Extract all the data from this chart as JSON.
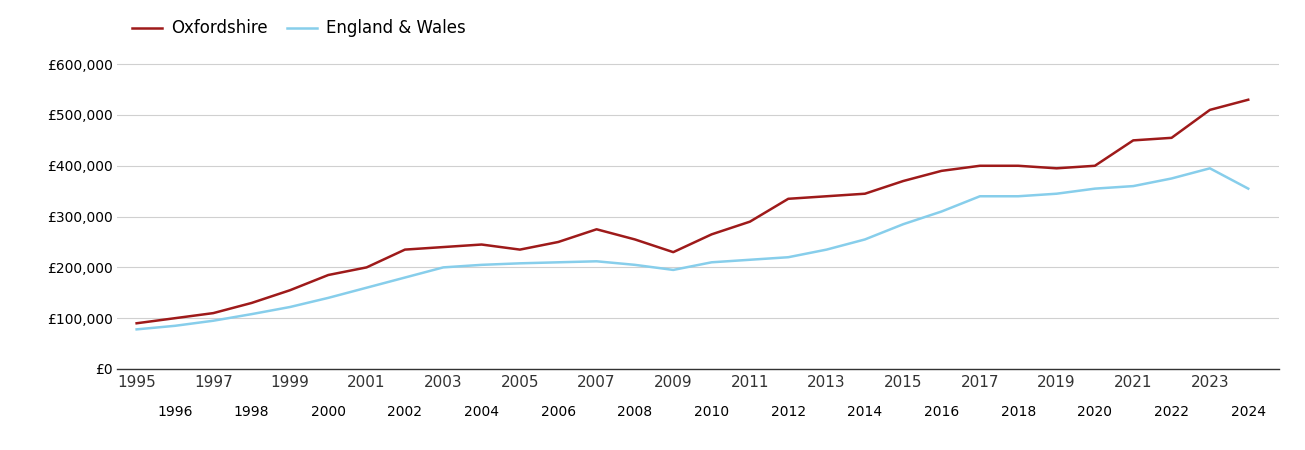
{
  "oxfordshire": {
    "years": [
      1995,
      1996,
      1997,
      1998,
      1999,
      2000,
      2001,
      2002,
      2003,
      2004,
      2005,
      2006,
      2007,
      2008,
      2009,
      2010,
      2011,
      2012,
      2013,
      2014,
      2015,
      2016,
      2017,
      2018,
      2019,
      2020,
      2021,
      2022,
      2023,
      2024
    ],
    "values": [
      90000,
      100000,
      110000,
      130000,
      155000,
      185000,
      200000,
      235000,
      240000,
      245000,
      235000,
      250000,
      275000,
      255000,
      230000,
      265000,
      290000,
      335000,
      340000,
      345000,
      370000,
      390000,
      400000,
      400000,
      395000,
      400000,
      450000,
      455000,
      510000,
      530000
    ]
  },
  "england_wales": {
    "years": [
      1995,
      1996,
      1997,
      1998,
      1999,
      2000,
      2001,
      2002,
      2003,
      2004,
      2005,
      2006,
      2007,
      2008,
      2009,
      2010,
      2011,
      2012,
      2013,
      2014,
      2015,
      2016,
      2017,
      2018,
      2019,
      2020,
      2021,
      2022,
      2023,
      2024
    ],
    "values": [
      78000,
      85000,
      95000,
      108000,
      122000,
      140000,
      160000,
      180000,
      200000,
      205000,
      208000,
      210000,
      212000,
      205000,
      195000,
      210000,
      215000,
      220000,
      235000,
      255000,
      285000,
      310000,
      340000,
      340000,
      345000,
      355000,
      360000,
      375000,
      395000,
      355000
    ]
  },
  "oxfordshire_color": "#9e1a1a",
  "england_wales_color": "#87CEEB",
  "background_color": "#ffffff",
  "grid_color": "#d0d0d0",
  "legend_labels": [
    "Oxfordshire",
    "England & Wales"
  ],
  "yticks": [
    0,
    100000,
    200000,
    300000,
    400000,
    500000,
    600000
  ],
  "ylim": [
    0,
    620000
  ],
  "xlim": [
    1994.5,
    2024.8
  ],
  "xlabel_odd": [
    1995,
    1997,
    1999,
    2001,
    2003,
    2005,
    2007,
    2009,
    2011,
    2013,
    2015,
    2017,
    2019,
    2021,
    2023
  ],
  "xlabel_even": [
    1996,
    1998,
    2000,
    2002,
    2004,
    2006,
    2008,
    2010,
    2012,
    2014,
    2016,
    2018,
    2020,
    2022,
    2024
  ],
  "line_width": 1.8,
  "tick_fontsize": 11,
  "legend_fontsize": 12
}
